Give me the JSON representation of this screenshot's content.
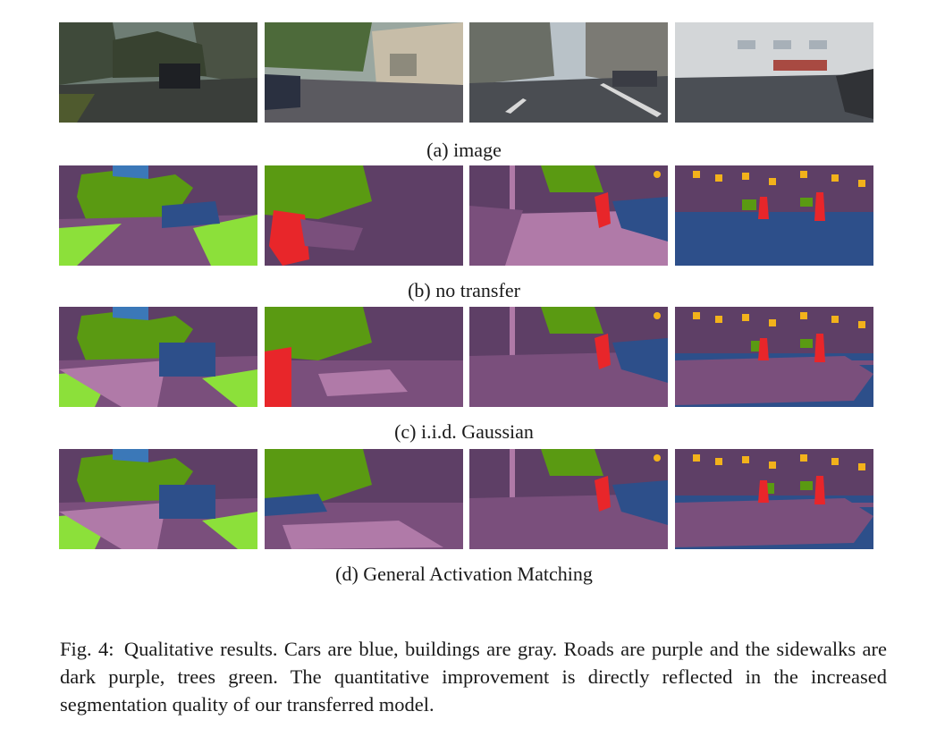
{
  "rows": [
    {
      "id": "image",
      "caption": "(a) image",
      "kind": "photo"
    },
    {
      "id": "no-transfer",
      "caption": "(b) no transfer",
      "kind": "seg"
    },
    {
      "id": "iid-gaussian",
      "caption": "(c) i.i.d. Gaussian",
      "kind": "seg"
    },
    {
      "id": "general-activation-matching",
      "caption": "(d) General Activation Matching",
      "kind": "seg"
    }
  ],
  "colors": {
    "car": "#2d4f8a",
    "building": "#5e3f66",
    "road": "#7a4f7c",
    "sidewalk": "#b07aa8",
    "tree": "#5a9a12",
    "grass": "#8ce03a",
    "person": "#e8262a",
    "sign": "#f2b21b",
    "sky": "#3b78b8"
  },
  "figure": {
    "label": "Fig. 4:",
    "text": "Qualitative results. Cars are blue, buildings are gray. Roads are purple and the sidewalks are dark purple, trees green. The quantitative improvement is directly reflected in the increased segmentation quality of our transferred model."
  }
}
